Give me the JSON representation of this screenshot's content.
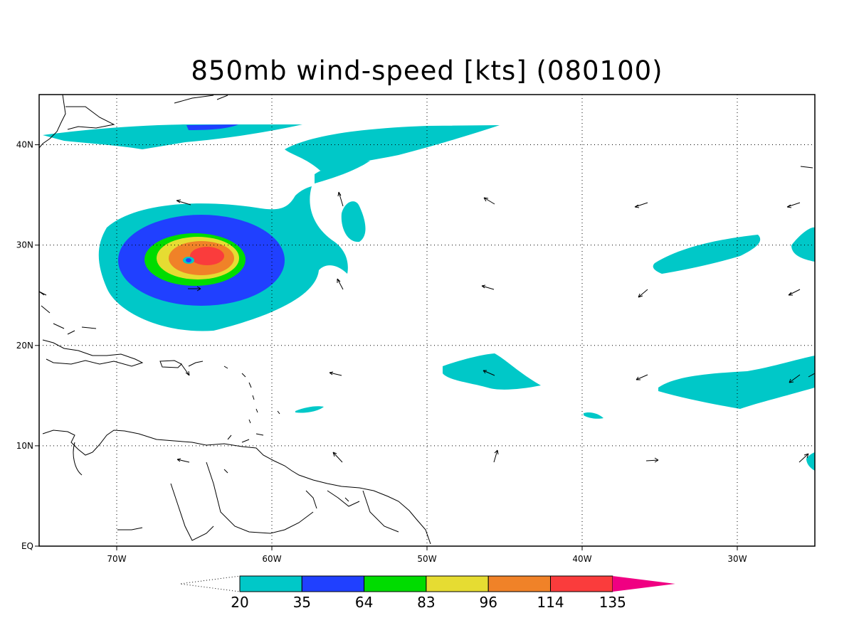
{
  "title": "850mb wind-speed [kts] (080100)",
  "map": {
    "lon_range": [
      -75,
      -25
    ],
    "lat_range": [
      0,
      45
    ],
    "x_ticks": [
      {
        "lon": -70,
        "label": "70W"
      },
      {
        "lon": -60,
        "label": "60W"
      },
      {
        "lon": -50,
        "label": "50W"
      },
      {
        "lon": -40,
        "label": "40W"
      },
      {
        "lon": -30,
        "label": "30W"
      }
    ],
    "y_ticks": [
      {
        "lat": 0,
        "label": "EQ"
      },
      {
        "lat": 10,
        "label": "10N"
      },
      {
        "lat": 20,
        "label": "20N"
      },
      {
        "lat": 30,
        "label": "30N"
      },
      {
        "lat": 40,
        "label": "40N"
      }
    ],
    "gridlines": "dotted"
  },
  "colorbar": {
    "levels": [
      "20",
      "35",
      "64",
      "83",
      "96",
      "114",
      "135"
    ],
    "colors": [
      "#00c8c8",
      "#2040ff",
      "#00dc00",
      "#e6dc32",
      "#f08228",
      "#fa3c3c",
      "#f00082"
    ],
    "below_color": "#ffffff"
  }
}
